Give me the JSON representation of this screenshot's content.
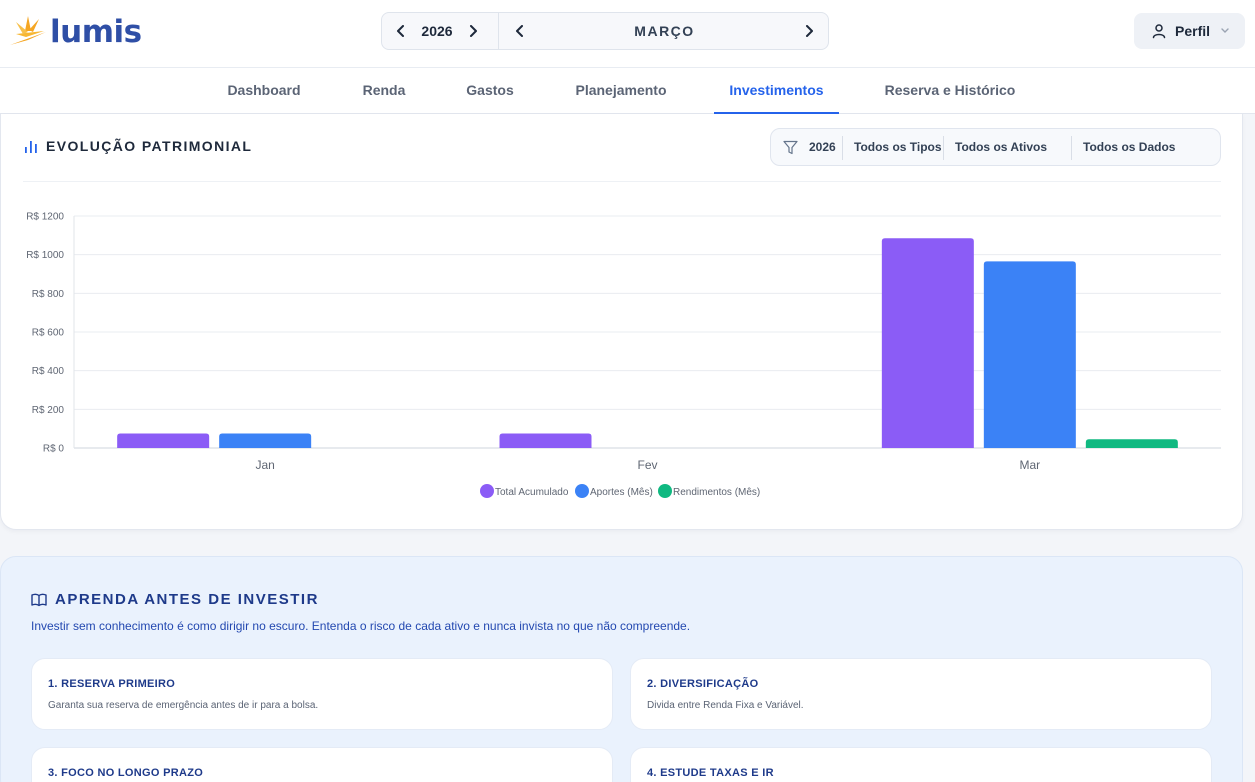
{
  "header": {
    "logo_text": "lumis",
    "year": "2026",
    "month": "MARÇO",
    "profile_label": "Perfil",
    "colors": {
      "brand": "#2f4fa6",
      "accent": "#2563eb",
      "logo_sun": "#f5a623"
    }
  },
  "nav": {
    "tabs": [
      {
        "label": "Dashboard",
        "active": false
      },
      {
        "label": "Renda",
        "active": false
      },
      {
        "label": "Gastos",
        "active": false
      },
      {
        "label": "Planejamento",
        "active": false
      },
      {
        "label": "Investimentos",
        "active": true
      },
      {
        "label": "Reserva e Histórico",
        "active": false
      }
    ]
  },
  "card": {
    "title": "EVOLUÇÃO PATRIMONIAL",
    "title_icon": "bar-chart-icon",
    "filters": {
      "icon": "filter-icon",
      "year": "2026",
      "types": "Todos os Tipos",
      "assets": "Todos os Ativos",
      "data": "Todos os Dados"
    }
  },
  "chart_data": {
    "type": "bar",
    "categories": [
      "Jan",
      "Fev",
      "Mar"
    ],
    "series": [
      {
        "name": "Total Acumulado",
        "color": "#8b5cf6",
        "values": [
          75,
          75,
          1085
        ]
      },
      {
        "name": "Aportes (Mês)",
        "color": "#3b82f6",
        "values": [
          75,
          0,
          965
        ]
      },
      {
        "name": "Rendimentos (Mês)",
        "color": "#10b981",
        "values": [
          0,
          0,
          45
        ]
      }
    ],
    "ylim": [
      0,
      1200
    ],
    "yticks": [
      0,
      200,
      400,
      600,
      800,
      1000,
      1200
    ],
    "ytick_labels": [
      "R$ 0",
      "R$ 200",
      "R$ 400",
      "R$ 600",
      "R$ 800",
      "R$ 1000",
      "R$ 1200"
    ],
    "grid": true,
    "legend_position": "bottom-center"
  },
  "learn": {
    "title": "APRENDA ANTES DE INVESTIR",
    "title_icon": "book-icon",
    "subtitle": "Investir sem conhecimento é como dirigir no escuro. Entenda o risco de cada ativo e nunca invista no que não compreende.",
    "tips": [
      {
        "title": "1. RESERVA PRIMEIRO",
        "text": "Garanta sua reserva de emergência antes de ir para a bolsa."
      },
      {
        "title": "2. DIVERSIFICAÇÃO",
        "text": "Divida entre Renda Fixa e Variável."
      },
      {
        "title": "3. FOCO NO LONGO PRAZO",
        "text": ""
      },
      {
        "title": "4. ESTUDE TAXAS E IR",
        "text": ""
      }
    ]
  }
}
